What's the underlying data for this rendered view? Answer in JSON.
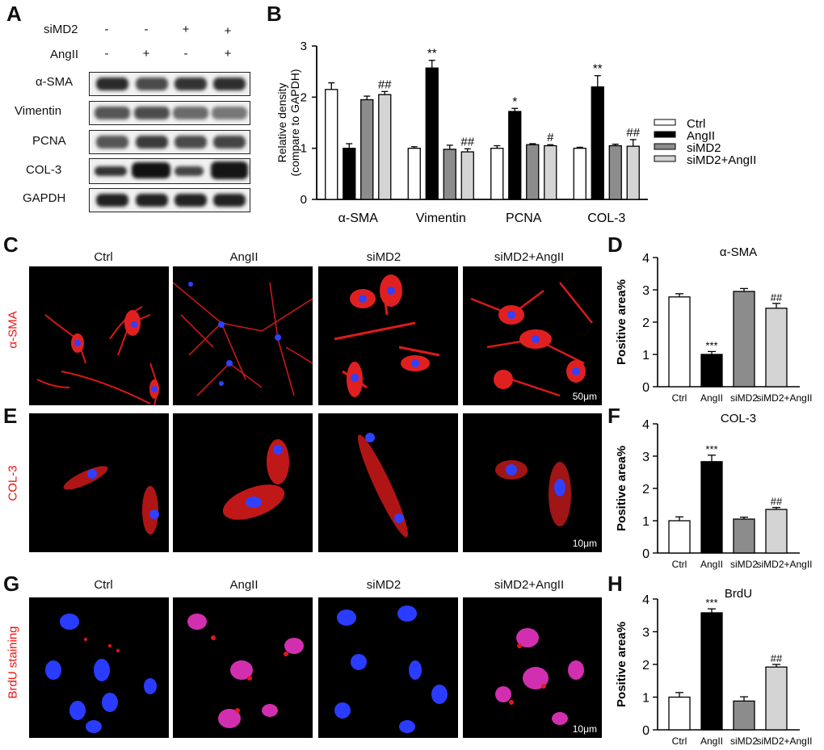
{
  "panels": {
    "A": "A",
    "B": "B",
    "C": "C",
    "D": "D",
    "E": "E",
    "F": "F",
    "G": "G",
    "H": "H"
  },
  "panel_a": {
    "condition_labels": [
      "siMD2",
      "AngII"
    ],
    "signs": [
      [
        "-",
        "-",
        "+",
        "+"
      ],
      [
        "-",
        "+",
        "-",
        "+"
      ]
    ],
    "proteins": [
      "α-SMA",
      "Vimentin",
      "PCNA",
      "COL-3",
      "GAPDH"
    ]
  },
  "micro_titles": [
    "Ctrl",
    "AngII",
    "siMD2",
    "siMD2+AngII"
  ],
  "stain_labels": {
    "C": "α-SMA",
    "E": "COL-3",
    "G": "BrdU staining"
  },
  "scale_bars": {
    "C": "50μm",
    "E": "10μm",
    "G": "10μm"
  },
  "chart_data": [
    {
      "id": "B",
      "type": "bar",
      "categories": [
        "α-SMA",
        "Vimentin",
        "PCNA",
        "COL-3"
      ],
      "ylabel": "Relative density (compare to GAPDH)",
      "ylabel_lines": [
        "Relative density",
        "(compare to GAPDH)"
      ],
      "ylim": [
        0,
        3
      ],
      "yticks": [
        0,
        1,
        2,
        3
      ],
      "legend": "right",
      "series": [
        {
          "name": "Ctrl",
          "values": [
            2.15,
            1.0,
            1.0,
            1.0
          ],
          "err": [
            0.13,
            0.03,
            0.05,
            0.02
          ],
          "color": "#ffffff",
          "ann": [
            "",
            "",
            "",
            ""
          ]
        },
        {
          "name": "AngII",
          "values": [
            1.0,
            2.57,
            1.72,
            2.2
          ],
          "err": [
            0.09,
            0.15,
            0.06,
            0.22
          ],
          "color": "#000000",
          "ann": [
            "**",
            "**",
            "*",
            "**"
          ]
        },
        {
          "name": "siMD2",
          "values": [
            1.95,
            0.98,
            1.07,
            1.05
          ],
          "err": [
            0.07,
            0.08,
            0.02,
            0.03
          ],
          "color": "#8c8c8c",
          "ann": [
            "",
            "",
            "",
            ""
          ]
        },
        {
          "name": "siMD2+AngII",
          "values": [
            2.05,
            0.93,
            1.05,
            1.04
          ],
          "err": [
            0.06,
            0.06,
            0.02,
            0.13
          ],
          "color": "#d4d4d4",
          "ann": [
            "##",
            "##",
            "#",
            "##"
          ]
        }
      ]
    },
    {
      "id": "D",
      "type": "bar",
      "title": "α-SMA",
      "categories": [
        "Ctrl",
        "AngII",
        "siMD2",
        "siMD2+AngII"
      ],
      "values": [
        2.78,
        1.0,
        2.95,
        2.43
      ],
      "err": [
        0.1,
        0.09,
        0.09,
        0.15
      ],
      "colors": [
        "#ffffff",
        "#000000",
        "#8c8c8c",
        "#d4d4d4"
      ],
      "ann": [
        "",
        "***",
        "",
        "##"
      ],
      "ylabel": "Positive area%",
      "ylim": [
        0,
        4
      ],
      "yticks": [
        0,
        1,
        2,
        3,
        4
      ]
    },
    {
      "id": "F",
      "type": "bar",
      "title": "COL-3",
      "categories": [
        "Ctrl",
        "AngII",
        "siMD2",
        "siMD2+AngII"
      ],
      "values": [
        1.0,
        2.83,
        1.05,
        1.35
      ],
      "err": [
        0.12,
        0.2,
        0.06,
        0.06
      ],
      "colors": [
        "#ffffff",
        "#000000",
        "#8c8c8c",
        "#d4d4d4"
      ],
      "ann": [
        "",
        "***",
        "",
        "##"
      ],
      "ylabel": "Positive area%",
      "ylim": [
        0,
        4
      ],
      "yticks": [
        0,
        1,
        2,
        3,
        4
      ]
    },
    {
      "id": "H",
      "type": "bar",
      "title": "BrdU",
      "categories": [
        "Ctrl",
        "AngII",
        "siMD2",
        "siMD2+AngII"
      ],
      "values": [
        1.0,
        3.58,
        0.88,
        1.92
      ],
      "err": [
        0.14,
        0.12,
        0.13,
        0.08
      ],
      "colors": [
        "#ffffff",
        "#000000",
        "#8c8c8c",
        "#d4d4d4"
      ],
      "ann": [
        "",
        "***",
        "",
        "##"
      ],
      "ylabel": "Positive area%",
      "ylim": [
        0,
        4
      ],
      "yticks": [
        0,
        1,
        2,
        3,
        4
      ]
    }
  ]
}
